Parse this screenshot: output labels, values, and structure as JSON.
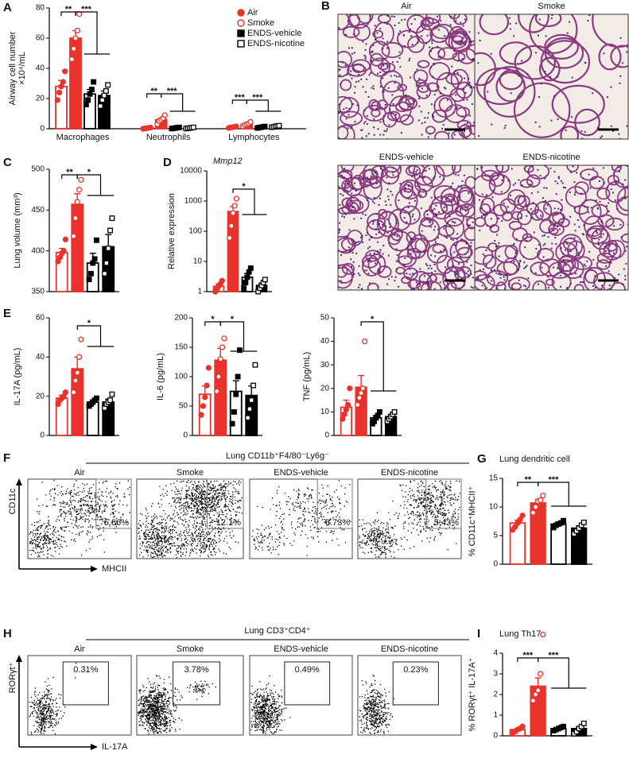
{
  "chart_data": [
    {
      "type": "bar",
      "panel": "A",
      "ylabel": [
        "Airway cell number",
        "×10⁴/mL"
      ],
      "categories": [
        "Macrophages",
        "Neutrophils",
        "Lymphocytes"
      ],
      "ylim": [
        0,
        80
      ],
      "yticks": [
        0,
        20,
        40,
        60,
        80
      ],
      "legend": "top-right",
      "series": [
        {
          "name": "Air",
          "color": "#e8322b",
          "marker": "circle",
          "marker_filled": true,
          "bar_filled": false,
          "values": [
            28,
            0.4,
            1
          ],
          "errors": [
            4,
            0.2,
            0.3
          ],
          "points": [
            [
              19,
              24,
              28,
              31,
              38
            ],
            [
              0,
              0.2,
              0.4,
              0.6,
              0.8
            ],
            [
              0.5,
              0.8,
              1,
              1.2,
              1.5
            ]
          ]
        },
        {
          "name": "Smoke",
          "color": "#e8322b",
          "marker": "circle",
          "marker_filled": false,
          "bar_filled": true,
          "values": [
            60,
            6,
            3
          ],
          "errors": [
            5,
            1,
            0.5
          ],
          "points": [
            [
              46,
              53,
              60,
              65,
              76
            ],
            [
              3,
              5,
              6,
              7,
              9
            ],
            [
              1.5,
              2.5,
              3,
              3.5,
              4.5
            ]
          ]
        },
        {
          "name": "ENDS-vehicle",
          "color": "#000000",
          "marker": "square",
          "marker_filled": true,
          "bar_filled": false,
          "values": [
            23,
            0.5,
            1
          ],
          "errors": [
            3,
            0.2,
            0.3
          ],
          "points": [
            [
              16,
              19,
              23,
              26,
              31
            ],
            [
              0.1,
              0.3,
              0.5,
              0.7,
              0.9
            ],
            [
              0.5,
              0.8,
              1,
              1.2,
              1.5
            ]
          ]
        },
        {
          "name": "ENDS-nicotine",
          "color": "#000000",
          "marker": "square",
          "marker_filled": false,
          "bar_filled": true,
          "values": [
            22,
            0.5,
            1.5
          ],
          "errors": [
            3,
            0.2,
            0.3
          ],
          "points": [
            [
              15,
              19,
              22,
              25,
              29
            ],
            [
              0.1,
              0.3,
              0.5,
              0.7,
              0.9
            ],
            [
              1,
              1.2,
              1.5,
              1.8,
              2
            ]
          ]
        }
      ],
      "annotations": [
        [
          "**",
          "***"
        ],
        [
          "**",
          "***"
        ],
        [
          "***",
          "***"
        ]
      ]
    },
    {
      "type": "micrograph",
      "panel": "B",
      "labels": [
        "Air",
        "Smoke",
        "ENDS-vehicle",
        "ENDS-nicotine"
      ]
    },
    {
      "type": "bar",
      "panel": "C",
      "ylabel": "Lung volume (mm³)",
      "ylim": [
        350,
        500
      ],
      "yticks": [
        350,
        400,
        450,
        500
      ],
      "values": [
        398,
        457,
        385,
        405
      ],
      "errors": [
        5,
        13,
        12,
        15
      ],
      "points": [
        [
          387,
          392,
          397,
          400,
          414
        ],
        [
          418,
          440,
          460,
          475,
          487
        ],
        [
          365,
          372,
          385,
          390,
          413
        ],
        [
          372,
          385,
          403,
          425,
          440
        ]
      ],
      "annotations": [
        "**",
        "*"
      ]
    },
    {
      "type": "bar",
      "panel": "D",
      "title": "Mmp12",
      "ylabel": "Relative expression",
      "yscale": "log",
      "ylim": [
        1,
        10000
      ],
      "yticks": [
        1,
        10,
        100,
        1000,
        10000
      ],
      "values": [
        1.5,
        450,
        3,
        1.6
      ],
      "errors": [
        0.3,
        200,
        1,
        0.3
      ],
      "points": [
        [
          1,
          1.2,
          1.5,
          1.8,
          2.3
        ],
        [
          60,
          150,
          400,
          700,
          1200
        ],
        [
          1.3,
          2,
          3,
          4.5,
          6
        ],
        [
          1,
          1.3,
          1.6,
          2,
          2.5
        ]
      ],
      "annotations": [
        "*"
      ]
    },
    {
      "type": "bar",
      "panel": "E",
      "ylabel": "IL-17A (pg/mL)",
      "ylim": [
        0,
        60
      ],
      "yticks": [
        0,
        20,
        40,
        60
      ],
      "values": [
        19,
        34,
        17,
        17
      ],
      "errors": [
        1.5,
        6,
        1,
        1.5
      ],
      "points": [
        [
          16,
          18,
          19,
          20,
          22
        ],
        [
          22,
          28,
          32,
          40,
          49
        ],
        [
          15,
          16,
          17,
          18,
          19
        ],
        [
          14,
          16,
          17,
          18,
          21
        ]
      ],
      "annotations": [
        "*"
      ]
    },
    {
      "type": "bar",
      "ylabel": "IL-6 (pg/mL)",
      "ylim": [
        0,
        200
      ],
      "yticks": [
        0,
        50,
        100,
        150,
        200
      ],
      "values": [
        70,
        128,
        75,
        68
      ],
      "errors": [
        14,
        20,
        18,
        16
      ],
      "points": [
        [
          35,
          50,
          65,
          85,
          115
        ],
        [
          75,
          100,
          130,
          150,
          165
        ],
        [
          20,
          40,
          70,
          100,
          145
        ],
        [
          30,
          45,
          60,
          85,
          120
        ]
      ],
      "annotations": [
        "*",
        "*"
      ]
    },
    {
      "type": "bar",
      "ylabel": "TNF (pg/mL)",
      "ylim": [
        0,
        50
      ],
      "yticks": [
        0,
        10,
        20,
        30,
        40,
        50
      ],
      "values": [
        12,
        20.5,
        7.5,
        8
      ],
      "errors": [
        3,
        5,
        1,
        1
      ],
      "points": [
        [
          7,
          9,
          11,
          13,
          20
        ],
        [
          13,
          16,
          18,
          20,
          40
        ],
        [
          5,
          6,
          7.5,
          8.5,
          10
        ],
        [
          6,
          7,
          8,
          9,
          10
        ]
      ],
      "annotations": [
        "*"
      ]
    },
    {
      "type": "flow",
      "panel": "F",
      "title": "Lung CD11b⁺F4/80⁻Ly6g⁻",
      "xlabel": "MHCII",
      "ylabel": "CD11c",
      "categories": [
        "Air",
        "Smoke",
        "ENDS-vehicle",
        "ENDS-nicotine"
      ],
      "values": [
        5.86,
        12.1,
        6.73,
        5.43
      ],
      "value_labels": [
        "5.86%",
        "12.1%",
        "6.73%",
        "5.43%"
      ],
      "label_color": "#e8322b",
      "gate": "quadrant"
    },
    {
      "type": "bar",
      "panel": "G",
      "title": "Lung dendritic cell",
      "ylabel": "% CD11c⁺MHCII⁺",
      "ylim": [
        0,
        15
      ],
      "yticks": [
        0,
        5,
        10,
        15
      ],
      "values": [
        7.2,
        10.7,
        7,
        6.3
      ],
      "errors": [
        0.5,
        0.6,
        0.4,
        0.4
      ],
      "points": [
        [
          6,
          6.5,
          7.2,
          7.8,
          8.5
        ],
        [
          9,
          10,
          11,
          11.2,
          12
        ],
        [
          6.4,
          6.8,
          7,
          7.2,
          7.6
        ],
        [
          5.3,
          5.8,
          6.3,
          6.8,
          7.3
        ]
      ],
      "annotations": [
        "**",
        "***"
      ]
    },
    {
      "type": "flow",
      "panel": "H",
      "title": "Lung CD3⁺CD4⁺",
      "xlabel": "IL-17A",
      "ylabel": "RORγt⁺",
      "categories": [
        "Air",
        "Smoke",
        "ENDS-vehicle",
        "ENDS-nicotine"
      ],
      "values": [
        0.31,
        3.78,
        0.49,
        0.23
      ],
      "value_labels": [
        "0.31%",
        "3.78%",
        "0.49%",
        "0.23%"
      ],
      "label_color": "#e8322b",
      "gate": "box"
    },
    {
      "type": "bar",
      "panel": "I",
      "title": "Lung Th17",
      "ylabel": "% RORγt⁺ IL-17A⁺",
      "ylim": [
        0,
        4
      ],
      "yticks": [
        0,
        1,
        2,
        3,
        4
      ],
      "values": [
        0.3,
        2.4,
        0.35,
        0.35
      ],
      "errors": [
        0.05,
        0.4,
        0.04,
        0.1
      ],
      "points": [
        [
          0.15,
          0.2,
          0.3,
          0.35,
          0.45
        ],
        [
          1.7,
          2,
          2.2,
          3,
          4.9
        ],
        [
          0.25,
          0.3,
          0.35,
          0.4,
          0.45
        ],
        [
          0.1,
          0.2,
          0.35,
          0.45,
          0.6
        ]
      ],
      "annotations": [
        "***",
        "***"
      ]
    }
  ]
}
